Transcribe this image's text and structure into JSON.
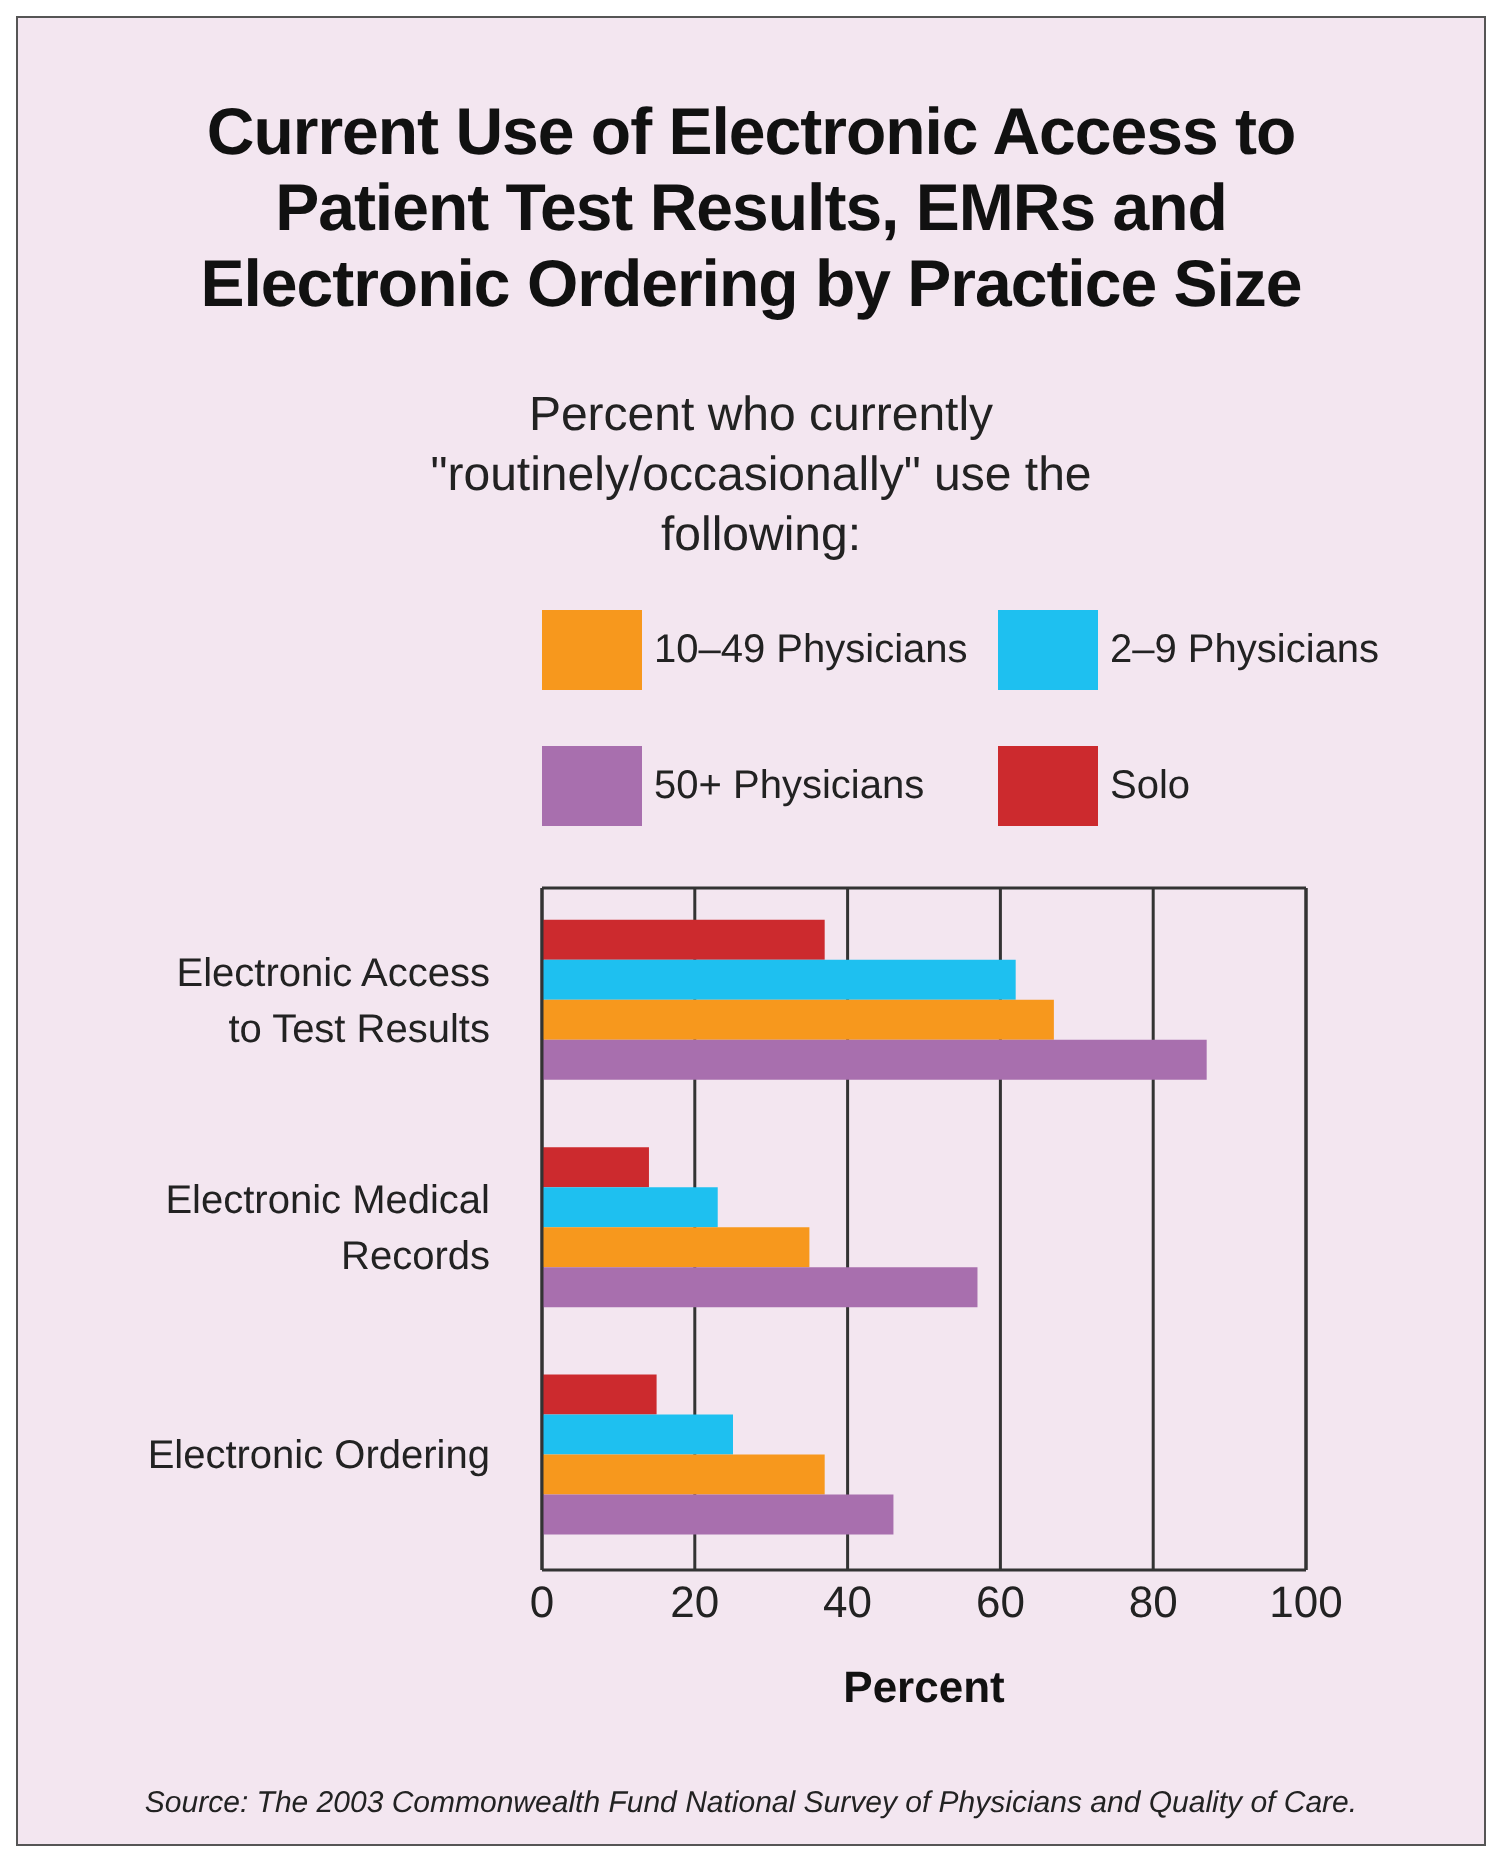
{
  "chart_data": {
    "type": "bar",
    "orientation": "horizontal",
    "title": "Current Use of Electronic Access to Patient Test Results, EMRs and Electronic Ordering by Practice Size",
    "subtitle": "Percent who currently \"routinely/occasionally\" use the following:",
    "xlabel": "Percent",
    "categories": [
      "Electronic Access to Test Results",
      "Electronic Medical Records",
      "Electronic Ordering"
    ],
    "series": [
      {
        "name": "Solo",
        "color": "#cc2a2e",
        "values": [
          37,
          14,
          15
        ]
      },
      {
        "name": "2–9 Physicians",
        "color": "#1ec0f0",
        "values": [
          62,
          23,
          25
        ]
      },
      {
        "name": "10–49 Physicians",
        "color": "#f7981d",
        "values": [
          67,
          35,
          37
        ]
      },
      {
        "name": "50+ Physicians",
        "color": "#a86fae",
        "values": [
          87,
          57,
          46
        ]
      }
    ],
    "xlim": [
      0,
      100
    ],
    "xticks": [
      0,
      20,
      40,
      60,
      80,
      100
    ],
    "grid": "x",
    "legend": "top",
    "annotations": [
      "Source: The 2003 Commonwealth Fund National Survey of Physicians and Quality of Care."
    ]
  }
}
